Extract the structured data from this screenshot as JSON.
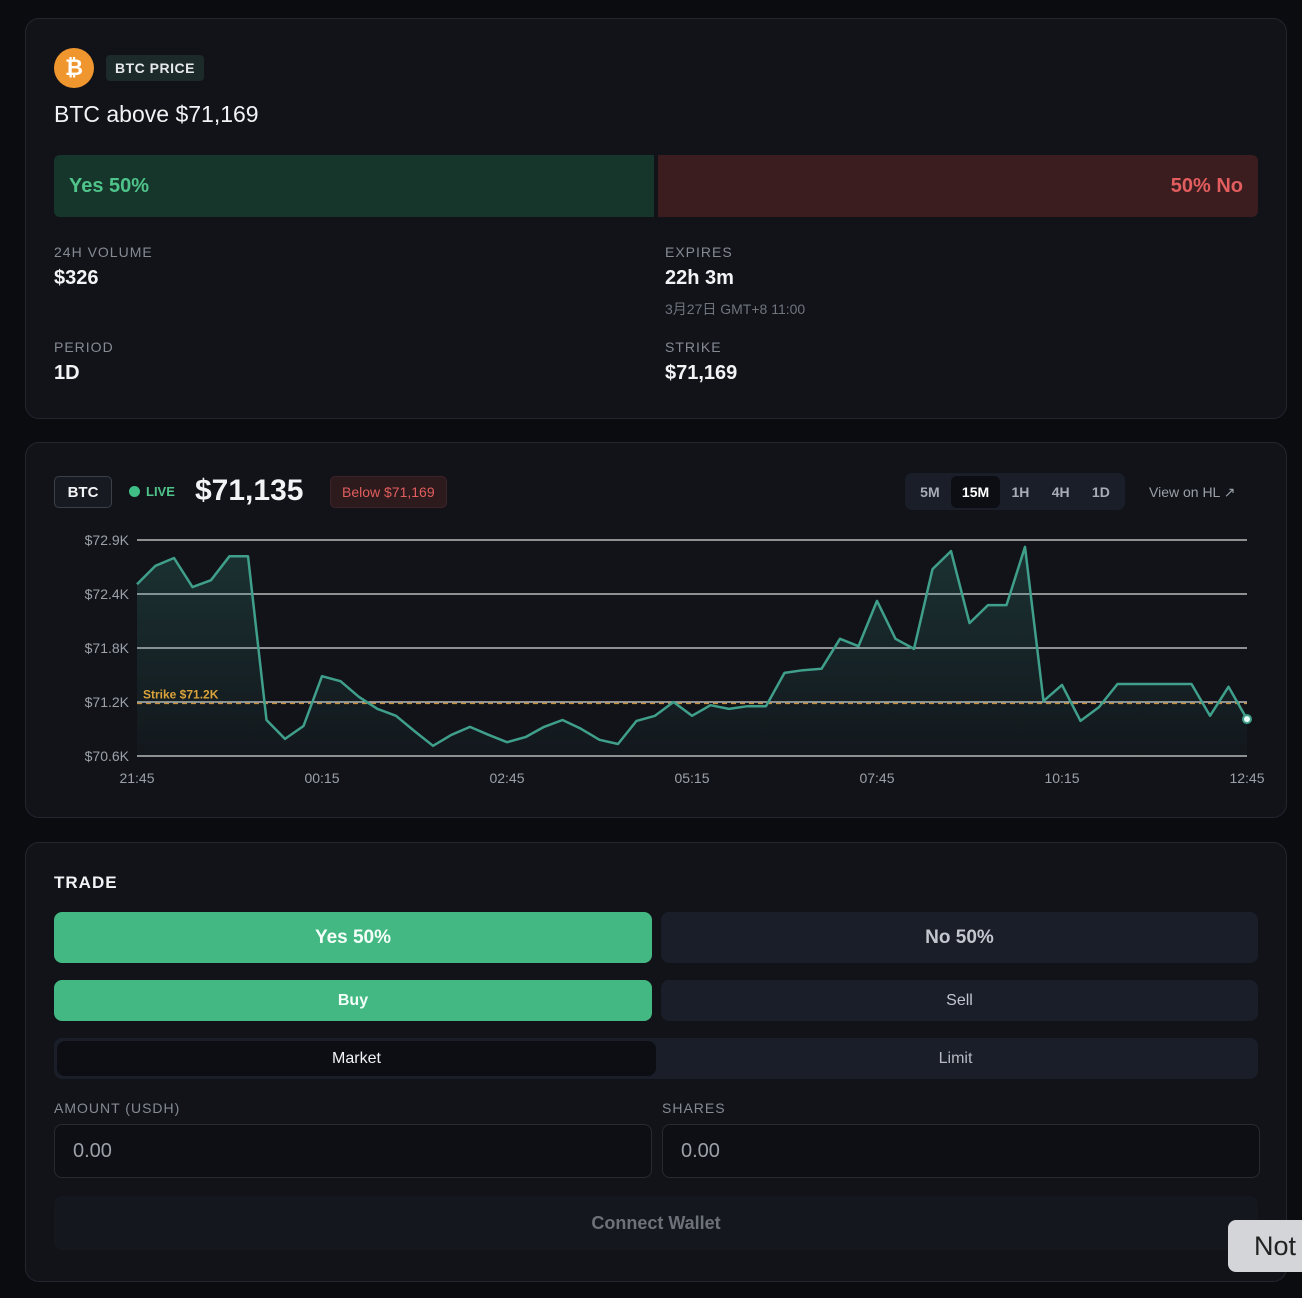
{
  "market": {
    "badge": "BTC PRICE",
    "title": "BTC above $71,169",
    "yes_bar": "Yes 50%",
    "no_bar": "50% No"
  },
  "stats": [
    {
      "label": "24H VOLUME",
      "value": "$326"
    },
    {
      "label": "EXPIRES",
      "value": "22h 3m",
      "note": "3月27日 GMT+8 11:00"
    },
    {
      "label": "PERIOD",
      "value": "1D"
    },
    {
      "label": "STRIKE",
      "value": "$71,169"
    }
  ],
  "chart_header": {
    "symbol": "BTC",
    "live": "LIVE",
    "price": "$71,135",
    "badge": "Below $71,169",
    "intervals": [
      "5M",
      "15M",
      "1H",
      "4H",
      "1D"
    ],
    "active_interval": 1,
    "link": "View on HL"
  },
  "chart_data": {
    "type": "line",
    "categories": [
      "21:45",
      null,
      null,
      null,
      null,
      null,
      null,
      null,
      null,
      null,
      "00:15",
      null,
      null,
      null,
      null,
      null,
      null,
      null,
      null,
      null,
      "02:45",
      null,
      null,
      null,
      null,
      null,
      null,
      null,
      null,
      null,
      "05:15",
      null,
      null,
      null,
      null,
      null,
      null,
      null,
      null,
      null,
      "07:45",
      null,
      null,
      null,
      null,
      null,
      null,
      null,
      null,
      null,
      "10:15",
      null,
      null,
      null,
      null,
      null,
      null,
      null,
      null,
      null,
      "12:45"
    ],
    "values": [
      72460,
      72660,
      72745,
      72430,
      72505,
      72765,
      72765,
      70990,
      70785,
      70925,
      71465,
      71410,
      71240,
      71110,
      71035,
      70870,
      70710,
      70830,
      70915,
      70830,
      70750,
      70805,
      70915,
      70990,
      70895,
      70775,
      70730,
      70980,
      71035,
      71185,
      71035,
      71150,
      71110,
      71140,
      71140,
      71500,
      71530,
      71545,
      71870,
      71790,
      72280,
      71870,
      71760,
      72625,
      72820,
      72040,
      72235,
      72235,
      72865,
      71195,
      71370,
      70980,
      71130,
      71380,
      71380,
      71380,
      71380,
      71380,
      71035,
      71350,
      71000
    ],
    "color": "#3f9f8a",
    "ylim": [
      70600,
      72940
    ],
    "yticks": [
      {
        "value": 70600,
        "label": "$70.6K"
      },
      {
        "value": 71185,
        "label": "$71.2K"
      },
      {
        "value": 71770,
        "label": "$71.8K"
      },
      {
        "value": 72355,
        "label": "$72.4K"
      },
      {
        "value": 72940,
        "label": "$72.9K"
      }
    ],
    "grid": true,
    "strike_line": 71169,
    "strike_label": "Strike $71.2K"
  },
  "trade": {
    "title": "TRADE",
    "outcomes": [
      "Yes 50%",
      "No 50%"
    ],
    "sides": [
      "Buy",
      "Sell"
    ],
    "order_types": [
      "Market",
      "Limit"
    ],
    "amount_label": "AMOUNT (USDH)",
    "amount_placeholder": "0.00",
    "shares_label": "SHARES",
    "shares_placeholder": "0.00",
    "button": "Connect Wallet"
  },
  "toast": "Not"
}
